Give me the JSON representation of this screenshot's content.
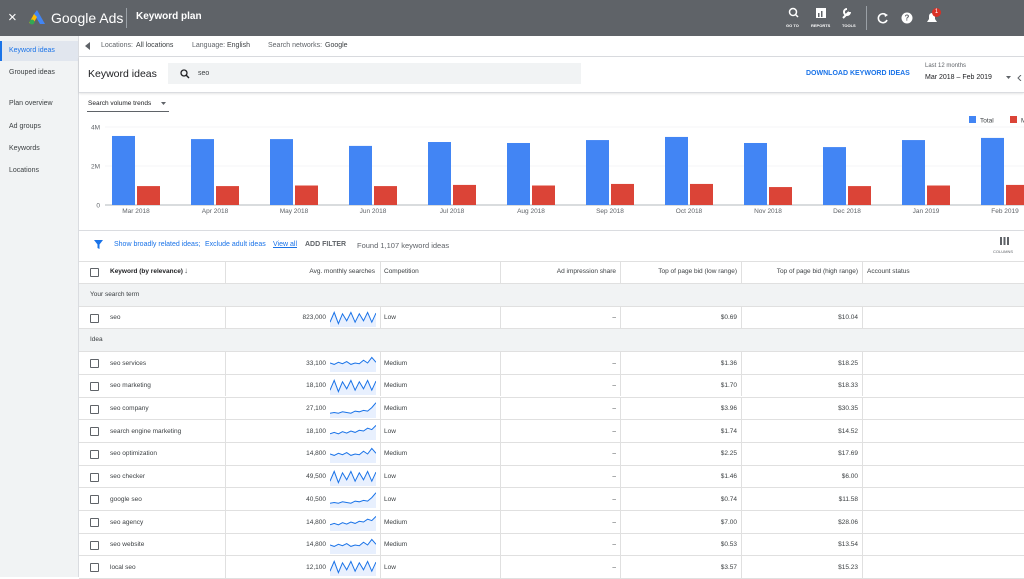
{
  "top_bar": {
    "close": "×",
    "product": "Google Ads",
    "page": "Keyword plan",
    "tools": [
      "GO TO",
      "REPORTS",
      "TOOLS"
    ],
    "notification_count": "1"
  },
  "sidebar": {
    "items": [
      "Keyword ideas",
      "Grouped ideas",
      "Plan overview",
      "Ad groups",
      "Keywords",
      "Locations"
    ]
  },
  "context_bar": {
    "locations": {
      "label": "Locations:",
      "value": "All locations"
    },
    "language": {
      "label": "Language:",
      "value": "English"
    },
    "networks": {
      "label": "Search networks:",
      "value": "Google"
    }
  },
  "header": {
    "title": "Keyword ideas",
    "search": "seo",
    "download": "DOWNLOAD KEYWORD IDEAS",
    "range_label": "Last 12 months",
    "range": "Mar 2018 – Feb 2019"
  },
  "trends_selector": "Search volume trends",
  "chart_data": {
    "type": "bar",
    "categories": [
      "Mar 2018",
      "Apr 2018",
      "May 2018",
      "Jun 2018",
      "Jul 2018",
      "Aug 2018",
      "Sep 2018",
      "Oct 2018",
      "Nov 2018",
      "Dec 2018",
      "Jan 2019",
      "Feb 2019"
    ],
    "series": [
      {
        "name": "Total",
        "color": "#4285f4",
        "values": [
          3540000,
          3380000,
          3380000,
          3030000,
          3230000,
          3180000,
          3330000,
          3490000,
          3180000,
          2970000,
          3330000,
          3440000
        ]
      },
      {
        "name": "Mobile",
        "color": "#db4437",
        "values": [
          970000,
          970000,
          1000000,
          970000,
          1030000,
          1000000,
          1080000,
          1080000,
          920000,
          970000,
          1000000,
          1030000
        ]
      }
    ],
    "ylim": [
      0,
      4000000
    ],
    "yticks": [
      0,
      {
        "value": 2000000,
        "label": "2M"
      },
      {
        "value": 4000000,
        "label": "4M"
      }
    ],
    "grid": true,
    "legend": "top-right"
  },
  "filter_row": {
    "broad": "Show broadly related ideas;",
    "adult": "Exclude adult ideas",
    "view_all": "View all",
    "add_filter": "ADD FILTER",
    "found": "Found 1,107 keyword ideas",
    "columns": "COLUMNS"
  },
  "table": {
    "columns": [
      "Keyword (by relevance)",
      "Avg. monthly searches",
      "Competition",
      "Ad impression share",
      "Top of page bid (low range)",
      "Top of page bid (high range)",
      "Account status"
    ],
    "sections": [
      {
        "title": "Your search term",
        "rows": [
          [
            "seo",
            "823,000",
            "Low",
            "–",
            "$0.69",
            "$10.04"
          ]
        ]
      },
      {
        "title": "Idea",
        "rows": [
          [
            "seo services",
            "33,100",
            "Medium",
            "–",
            "$1.36",
            "$18.25"
          ],
          [
            "seo marketing",
            "18,100",
            "Medium",
            "–",
            "$1.70",
            "$18.33"
          ],
          [
            "seo company",
            "27,100",
            "Medium",
            "–",
            "$3.96",
            "$30.35"
          ],
          [
            "search engine marketing",
            "18,100",
            "Low",
            "–",
            "$1.74",
            "$14.52"
          ],
          [
            "seo optimization",
            "14,800",
            "Medium",
            "–",
            "$2.25",
            "$17.69"
          ],
          [
            "seo checker",
            "49,500",
            "Low",
            "–",
            "$1.46",
            "$6.00"
          ],
          [
            "google seo",
            "40,500",
            "Low",
            "–",
            "$0.74",
            "$11.58"
          ],
          [
            "seo agency",
            "14,800",
            "Medium",
            "–",
            "$7.00",
            "$28.06"
          ],
          [
            "seo website",
            "14,800",
            "Medium",
            "–",
            "$0.53",
            "$13.54"
          ],
          [
            "local seo",
            "12,100",
            "Low",
            "–",
            "$3.57",
            "$15.23"
          ]
        ]
      }
    ]
  }
}
